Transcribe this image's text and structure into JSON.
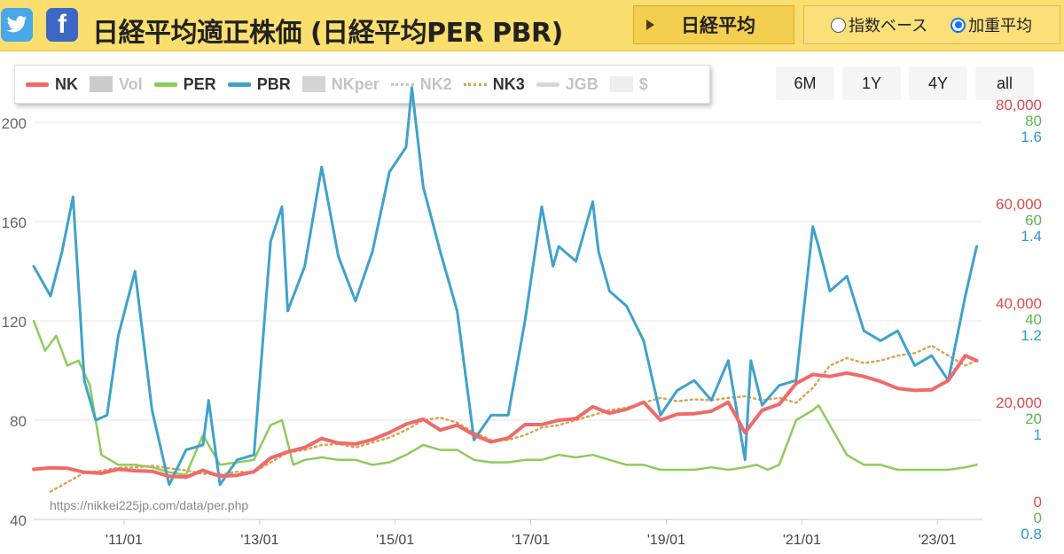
{
  "header": {
    "twitter_icon": "twitter-icon",
    "facebook_icon": "facebook-icon",
    "facebook_glyph": "f",
    "title": "日経平均適正株価 (日経平均PER PBR)",
    "index_button": "日経平均",
    "radio_index": "指数ベース",
    "radio_weighted": "加重平均",
    "selected_radio": "weighted",
    "colors": {
      "bar": "#fbdf6e",
      "twitter": "#4aa7e8",
      "facebook": "#3c67c4"
    }
  },
  "range_buttons": [
    "6M",
    "1Y",
    "4Y",
    "all"
  ],
  "chart_data": {
    "type": "line",
    "legend": [
      {
        "name": "NK",
        "color": "#f06a6a",
        "style": "line",
        "visible": true
      },
      {
        "name": "Vol",
        "color": "#cccccc",
        "style": "box",
        "visible": false
      },
      {
        "name": "PER",
        "color": "#8dcc5a",
        "style": "line",
        "visible": true
      },
      {
        "name": "PBR",
        "color": "#3fa2cc",
        "style": "line",
        "visible": true
      },
      {
        "name": "NKper",
        "color": "#d4d4d4",
        "style": "box",
        "visible": false
      },
      {
        "name": "NK2",
        "color": "#c8c8c8",
        "style": "dotted",
        "visible": false
      },
      {
        "name": "NK3",
        "color": "#d9a550",
        "style": "dotted",
        "visible": true
      },
      {
        "name": "JGB",
        "color": "#d8d8d8",
        "style": "line",
        "visible": false
      },
      {
        "name": "$",
        "color": "#eeeeee",
        "style": "box",
        "visible": false
      }
    ],
    "x_range": [
      "2009-09",
      "2023-09"
    ],
    "x_ticks": [
      "'11/01",
      "'13/01",
      "'15/01",
      "'17/01",
      "'19/01",
      "'21/01",
      "'23/01"
    ],
    "x_tick_dates": [
      "2011-01",
      "2013-01",
      "2015-01",
      "2017-01",
      "2019-01",
      "2021-01",
      "2023-01"
    ],
    "left_axis": {
      "min": 40,
      "max": 200,
      "ticks": [
        "40",
        "80",
        "120",
        "160",
        "200"
      ]
    },
    "right_axes": [
      {
        "name": "NK",
        "color": "#e04a4a",
        "min": 0,
        "max": 80000,
        "ticks": [
          "0",
          "20,000",
          "40,000",
          "60,000",
          "80,000"
        ]
      },
      {
        "name": "PER",
        "color": "#5cb84a",
        "min": 0,
        "max": 80,
        "ticks": [
          "0",
          "20",
          "40",
          "60",
          "80"
        ]
      },
      {
        "name": "PBR",
        "color": "#2a9cc8",
        "min": 0.8,
        "max": 1.6,
        "ticks": [
          "0.8",
          "1",
          "1.2",
          "1.4",
          "1.6"
        ]
      }
    ],
    "watermark": "https://nikkei225jp.com/data/per.php",
    "series": [
      {
        "name": "NK",
        "axis": "NK",
        "x": [
          "2009-09",
          "2009-12",
          "2010-03",
          "2010-06",
          "2010-09",
          "2010-12",
          "2011-03",
          "2011-06",
          "2011-09",
          "2011-12",
          "2012-03",
          "2012-06",
          "2012-09",
          "2012-12",
          "2013-03",
          "2013-06",
          "2013-09",
          "2013-12",
          "2014-03",
          "2014-06",
          "2014-09",
          "2014-12",
          "2015-03",
          "2015-06",
          "2015-09",
          "2015-12",
          "2016-03",
          "2016-06",
          "2016-09",
          "2016-12",
          "2017-03",
          "2017-06",
          "2017-09",
          "2017-12",
          "2018-03",
          "2018-06",
          "2018-09",
          "2018-12",
          "2019-03",
          "2019-06",
          "2019-09",
          "2019-12",
          "2020-03",
          "2020-06",
          "2020-09",
          "2020-12",
          "2021-03",
          "2021-06",
          "2021-09",
          "2021-12",
          "2022-03",
          "2022-06",
          "2022-09",
          "2022-12",
          "2023-03",
          "2023-06",
          "2023-08"
        ],
        "values": [
          10100,
          10400,
          10300,
          9500,
          9300,
          10100,
          9800,
          9700,
          8700,
          8500,
          9900,
          8700,
          8900,
          9600,
          12400,
          13600,
          14500,
          16300,
          15400,
          15200,
          16100,
          17500,
          19200,
          20200,
          18000,
          19000,
          17000,
          15600,
          16400,
          19100,
          19100,
          20000,
          20300,
          22700,
          21400,
          22200,
          23600,
          20000,
          21200,
          21300,
          21800,
          23600,
          17500,
          22000,
          23200,
          27400,
          29200,
          28800,
          29500,
          28800,
          27800,
          26400,
          26000,
          26100,
          28000,
          33000,
          32000
        ]
      },
      {
        "name": "PER",
        "axis": "PER",
        "x": [
          "2009-09",
          "2009-11",
          "2010-01",
          "2010-03",
          "2010-05",
          "2010-07",
          "2010-09",
          "2010-12",
          "2011-03",
          "2011-06",
          "2011-09",
          "2011-12",
          "2012-03",
          "2012-06",
          "2012-09",
          "2012-12",
          "2013-03",
          "2013-05",
          "2013-07",
          "2013-09",
          "2013-12",
          "2014-03",
          "2014-06",
          "2014-09",
          "2014-12",
          "2015-03",
          "2015-06",
          "2015-09",
          "2015-12",
          "2016-03",
          "2016-06",
          "2016-09",
          "2016-12",
          "2017-03",
          "2017-06",
          "2017-09",
          "2017-12",
          "2018-03",
          "2018-06",
          "2018-09",
          "2018-12",
          "2019-03",
          "2019-06",
          "2019-09",
          "2019-12",
          "2020-03",
          "2020-05",
          "2020-07",
          "2020-09",
          "2020-12",
          "2021-03",
          "2021-04",
          "2021-06",
          "2021-09",
          "2021-12",
          "2022-03",
          "2022-06",
          "2022-09",
          "2022-12",
          "2023-03",
          "2023-06",
          "2023-08"
        ],
        "values": [
          40,
          34,
          37,
          31,
          32,
          27,
          13,
          11,
          11,
          10.5,
          9.5,
          9,
          17,
          11,
          11.5,
          12,
          19,
          20,
          11,
          12,
          12.5,
          12,
          12,
          11,
          11.5,
          13,
          15,
          14,
          14,
          12,
          11.5,
          11.5,
          12,
          12,
          13,
          12.5,
          13,
          12,
          11,
          11,
          10,
          10,
          10,
          10.5,
          10,
          10.5,
          11,
          10,
          11,
          20,
          22,
          23,
          19,
          13,
          11,
          11,
          10,
          10,
          10,
          10,
          10.5,
          11
        ]
      },
      {
        "name": "PBR",
        "axis": "PBR",
        "x": [
          "2009-09",
          "2009-12",
          "2010-02",
          "2010-04",
          "2010-06",
          "2010-08",
          "2010-10",
          "2010-12",
          "2011-03",
          "2011-06",
          "2011-09",
          "2011-12",
          "2012-03",
          "2012-04",
          "2012-06",
          "2012-09",
          "2012-12",
          "2013-03",
          "2013-05",
          "2013-06",
          "2013-09",
          "2013-12",
          "2014-03",
          "2014-06",
          "2014-09",
          "2014-12",
          "2015-03",
          "2015-04",
          "2015-06",
          "2015-09",
          "2015-12",
          "2016-03",
          "2016-06",
          "2016-09",
          "2016-12",
          "2017-03",
          "2017-05",
          "2017-06",
          "2017-09",
          "2017-12",
          "2018-01",
          "2018-03",
          "2018-06",
          "2018-09",
          "2018-12",
          "2019-03",
          "2019-06",
          "2019-09",
          "2019-12",
          "2020-03",
          "2020-04",
          "2020-06",
          "2020-09",
          "2020-12",
          "2021-03",
          "2021-04",
          "2021-06",
          "2021-09",
          "2021-12",
          "2022-03",
          "2022-06",
          "2022-09",
          "2022-12",
          "2023-03",
          "2023-06",
          "2023-08"
        ],
        "values": [
          1.31,
          1.25,
          1.34,
          1.45,
          1.08,
          1.0,
          1.01,
          1.17,
          1.3,
          1.02,
          0.87,
          0.94,
          0.95,
          1.04,
          0.87,
          0.92,
          0.93,
          1.36,
          1.43,
          1.22,
          1.31,
          1.51,
          1.33,
          1.24,
          1.34,
          1.5,
          1.55,
          1.67,
          1.47,
          1.34,
          1.22,
          0.96,
          1.01,
          1.01,
          1.2,
          1.43,
          1.31,
          1.35,
          1.32,
          1.44,
          1.34,
          1.26,
          1.23,
          1.16,
          1.01,
          1.06,
          1.08,
          1.04,
          1.12,
          0.92,
          1.12,
          1.03,
          1.07,
          1.08,
          1.39,
          1.35,
          1.26,
          1.29,
          1.18,
          1.16,
          1.18,
          1.11,
          1.13,
          1.08,
          1.25,
          1.35
        ]
      },
      {
        "name": "NK3",
        "axis": "NK",
        "x": [
          "2009-12",
          "2010-03",
          "2010-06",
          "2010-09",
          "2010-12",
          "2011-03",
          "2011-06",
          "2011-09",
          "2011-12",
          "2012-03",
          "2012-06",
          "2012-09",
          "2012-12",
          "2013-03",
          "2013-06",
          "2013-09",
          "2013-12",
          "2014-03",
          "2014-06",
          "2014-09",
          "2014-12",
          "2015-03",
          "2015-06",
          "2015-09",
          "2015-12",
          "2016-03",
          "2016-06",
          "2016-09",
          "2016-12",
          "2017-03",
          "2017-06",
          "2017-09",
          "2017-12",
          "2018-03",
          "2018-06",
          "2018-09",
          "2018-12",
          "2019-03",
          "2019-06",
          "2019-09",
          "2019-12",
          "2020-03",
          "2020-06",
          "2020-09",
          "2020-12",
          "2021-03",
          "2021-06",
          "2021-09",
          "2021-12",
          "2022-03",
          "2022-06",
          "2022-09",
          "2022-12",
          "2023-03",
          "2023-06",
          "2023-08"
        ],
        "values": [
          5600,
          7500,
          9400,
          9800,
          10400,
          10500,
          10800,
          10300,
          9900,
          9200,
          9000,
          9600,
          9500,
          11500,
          13500,
          14000,
          15000,
          15200,
          14500,
          15500,
          16500,
          18000,
          20000,
          20500,
          19500,
          17500,
          16000,
          16000,
          17000,
          18500,
          19000,
          20000,
          21000,
          22000,
          22500,
          23500,
          24500,
          23800,
          24200,
          24000,
          24500,
          24800,
          24000,
          24500,
          23500,
          26500,
          31000,
          32500,
          31500,
          32000,
          33000,
          33500,
          35000,
          33000,
          31000,
          32000
        ]
      }
    ]
  }
}
